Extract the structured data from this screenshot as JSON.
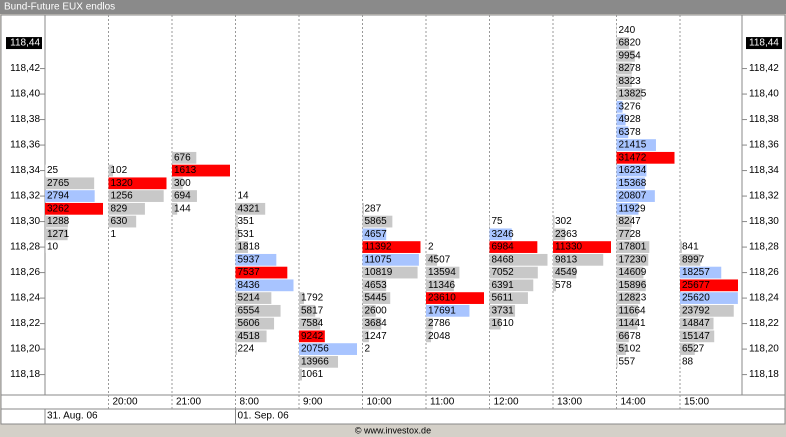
{
  "chart_data": {
    "type": "footprint",
    "title": "Bund-Future EUX endlos",
    "footer": "© www.investox.de",
    "ylim": [
      118.164,
      118.462
    ],
    "tick_size": 0.01,
    "yticks": [
      {
        "value": 118.18,
        "label": "118,18"
      },
      {
        "value": 118.2,
        "label": "118,20"
      },
      {
        "value": 118.22,
        "label": "118,22"
      },
      {
        "value": 118.24,
        "label": "118,24"
      },
      {
        "value": 118.26,
        "label": "118,26"
      },
      {
        "value": 118.28,
        "label": "118,28"
      },
      {
        "value": 118.3,
        "label": "118,30"
      },
      {
        "value": 118.32,
        "label": "118,32"
      },
      {
        "value": 118.34,
        "label": "118,34"
      },
      {
        "value": 118.36,
        "label": "118,36"
      },
      {
        "value": 118.38,
        "label": "118,38"
      },
      {
        "value": 118.4,
        "label": "118,40"
      },
      {
        "value": 118.42,
        "label": "118,42"
      }
    ],
    "last_price": {
      "value": 118.44,
      "label": "118,44"
    },
    "columns": [
      {
        "time": null,
        "date": "31. Aug. 06",
        "top": 118.34,
        "values": [
          25,
          2765,
          2794,
          3262,
          1288,
          1271,
          10
        ],
        "colors": [
          "#c8c8c8",
          "#c8c8c8",
          "#a8c4ff",
          "#ff0000",
          "#c8c8c8",
          "#c8c8c8",
          "#c8c8c8"
        ]
      },
      {
        "time": "20:00",
        "date": null,
        "top": 118.34,
        "values": [
          102,
          1320,
          1256,
          829,
          630,
          1
        ],
        "colors": [
          "#c8c8c8",
          "#ff0000",
          "#c8c8c8",
          "#c8c8c8",
          "#c8c8c8",
          "#c8c8c8"
        ]
      },
      {
        "time": "21:00",
        "date": null,
        "top": 118.35,
        "values": [
          676,
          1613,
          300,
          694,
          144
        ],
        "colors": [
          "#c8c8c8",
          "#ff0000",
          "#c8c8c8",
          "#c8c8c8",
          "#c8c8c8"
        ]
      },
      {
        "time": "8:00",
        "date": "01. Sep. 06",
        "top": 118.32,
        "values": [
          14,
          4321,
          351,
          531,
          1818,
          5937,
          7537,
          8436,
          5214,
          6554,
          5606,
          4518,
          224
        ],
        "colors": [
          "#c8c8c8",
          "#c8c8c8",
          "#c8c8c8",
          "#c8c8c8",
          "#c8c8c8",
          "#a8c4ff",
          "#ff0000",
          "#a8c4ff",
          "#c8c8c8",
          "#c8c8c8",
          "#c8c8c8",
          "#c8c8c8",
          "#c8c8c8"
        ]
      },
      {
        "time": "9:00",
        "date": null,
        "top": 118.24,
        "values": [
          1792,
          5817,
          7584,
          9242,
          20756,
          13966,
          1061
        ],
        "colors": [
          "#c8c8c8",
          "#c8c8c8",
          "#c8c8c8",
          "#ff0000",
          "#a8c4ff",
          "#c8c8c8",
          "#c8c8c8"
        ]
      },
      {
        "time": "10:00",
        "date": null,
        "top": 118.31,
        "values": [
          287,
          5865,
          4657,
          11392,
          11075,
          10819,
          4653,
          5445,
          2600,
          3684,
          1247,
          2
        ],
        "colors": [
          "#c8c8c8",
          "#c8c8c8",
          "#a8c4ff",
          "#ff0000",
          "#a8c4ff",
          "#c8c8c8",
          "#c8c8c8",
          "#c8c8c8",
          "#c8c8c8",
          "#c8c8c8",
          "#c8c8c8",
          "#c8c8c8"
        ]
      },
      {
        "time": "11:00",
        "date": null,
        "top": 118.28,
        "values": [
          2,
          4507,
          13594,
          11346,
          23610,
          17691,
          2786,
          2048
        ],
        "colors": [
          "#c8c8c8",
          "#c8c8c8",
          "#c8c8c8",
          "#c8c8c8",
          "#ff0000",
          "#a8c4ff",
          "#c8c8c8",
          "#c8c8c8"
        ]
      },
      {
        "time": "12:00",
        "date": null,
        "top": 118.3,
        "values": [
          75,
          3246,
          6984,
          8468,
          7052,
          6391,
          5611,
          3731,
          1610
        ],
        "colors": [
          "#c8c8c8",
          "#a8c4ff",
          "#ff0000",
          "#c8c8c8",
          "#c8c8c8",
          "#c8c8c8",
          "#c8c8c8",
          "#c8c8c8",
          "#c8c8c8"
        ]
      },
      {
        "time": "13:00",
        "date": null,
        "top": 118.3,
        "values": [
          302,
          2363,
          11330,
          9813,
          4549,
          578
        ],
        "colors": [
          "#c8c8c8",
          "#c8c8c8",
          "#ff0000",
          "#c8c8c8",
          "#c8c8c8",
          "#c8c8c8"
        ]
      },
      {
        "time": "14:00",
        "date": null,
        "top": 118.45,
        "values": [
          240,
          6820,
          9954,
          8278,
          8323,
          13825,
          3276,
          4928,
          6378,
          21415,
          31472,
          16234,
          15368,
          20807,
          11929,
          8247,
          7728,
          17801,
          17230,
          14609,
          15896,
          12823,
          11664,
          11441,
          6678,
          5102,
          557
        ],
        "colors": [
          "#c8c8c8",
          "#c8c8c8",
          "#c8c8c8",
          "#c8c8c8",
          "#c8c8c8",
          "#c8c8c8",
          "#a8c4ff",
          "#a8c4ff",
          "#a8c4ff",
          "#a8c4ff",
          "#ff0000",
          "#a8c4ff",
          "#a8c4ff",
          "#a8c4ff",
          "#a8c4ff",
          "#c8c8c8",
          "#c8c8c8",
          "#c8c8c8",
          "#c8c8c8",
          "#c8c8c8",
          "#c8c8c8",
          "#c8c8c8",
          "#c8c8c8",
          "#c8c8c8",
          "#c8c8c8",
          "#c8c8c8",
          "#c8c8c8"
        ]
      },
      {
        "time": "15:00",
        "date": null,
        "top": 118.28,
        "values": [
          841,
          8997,
          18257,
          25677,
          25620,
          23792,
          14847,
          15147,
          6527,
          88
        ],
        "colors": [
          "#c8c8c8",
          "#c8c8c8",
          "#a8c4ff",
          "#ff0000",
          "#a8c4ff",
          "#c8c8c8",
          "#c8c8c8",
          "#c8c8c8",
          "#c8c8c8",
          "#c8c8c8"
        ]
      }
    ]
  }
}
